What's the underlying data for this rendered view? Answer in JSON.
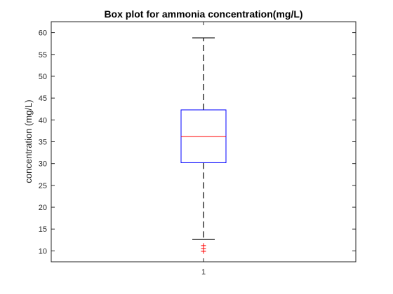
{
  "chart_data": {
    "type": "box",
    "title": "Box plot for ammonia concentration(mg/L)",
    "xlabel": "",
    "ylabel": "concentration (mg/L)",
    "categories": [
      "1"
    ],
    "ylim": [
      7.5,
      62.5
    ],
    "yticks": [
      10,
      15,
      20,
      25,
      30,
      35,
      40,
      45,
      50,
      55,
      60
    ],
    "grid": false,
    "boxes": [
      {
        "category": "1",
        "whisker_low": 12.6,
        "q1": 30.2,
        "median": 36.2,
        "q3": 42.3,
        "whisker_high": 58.8,
        "outliers": [
          9.9,
          10.5,
          11.2
        ]
      }
    ],
    "colors": {
      "box": "#0000ff",
      "median": "#ff0000",
      "whisker": "#000000",
      "outlier": "#ff0000",
      "axes": "#262626"
    }
  }
}
